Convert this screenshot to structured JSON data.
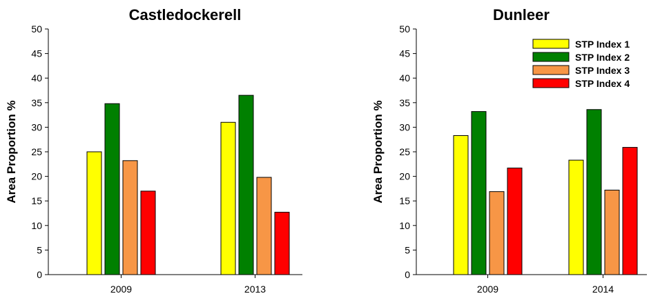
{
  "chart_data": [
    {
      "type": "bar",
      "title": "Castledockerell",
      "ylabel": "Area Proportion %",
      "xlabel": "",
      "ylim": [
        0,
        50
      ],
      "yticks": [
        0,
        5,
        10,
        15,
        20,
        25,
        30,
        35,
        40,
        45,
        50
      ],
      "categories": [
        "2009",
        "2013"
      ],
      "series": [
        {
          "name": "STP Index 1",
          "color": "#ffff00",
          "values": [
            25.0,
            31.0
          ]
        },
        {
          "name": "STP Index 2",
          "color": "#008000",
          "values": [
            34.8,
            36.5
          ]
        },
        {
          "name": "STP Index 3",
          "color": "#f79646",
          "values": [
            23.2,
            19.8
          ]
        },
        {
          "name": "STP Index 4",
          "color": "#ff0000",
          "values": [
            17.0,
            12.7
          ]
        }
      ],
      "legend": "none"
    },
    {
      "type": "bar",
      "title": "Dunleer",
      "ylabel": "Area Proportion %",
      "xlabel": "",
      "ylim": [
        0,
        50
      ],
      "yticks": [
        0,
        5,
        10,
        15,
        20,
        25,
        30,
        35,
        40,
        45,
        50
      ],
      "categories": [
        "2009",
        "2014"
      ],
      "series": [
        {
          "name": "STP Index 1",
          "color": "#ffff00",
          "values": [
            28.3,
            23.3
          ]
        },
        {
          "name": "STP Index 2",
          "color": "#008000",
          "values": [
            33.2,
            33.6
          ]
        },
        {
          "name": "STP Index 3",
          "color": "#f79646",
          "values": [
            16.9,
            17.2
          ]
        },
        {
          "name": "STP Index 4",
          "color": "#ff0000",
          "values": [
            21.7,
            25.9
          ]
        }
      ],
      "legend": "top-right"
    }
  ]
}
